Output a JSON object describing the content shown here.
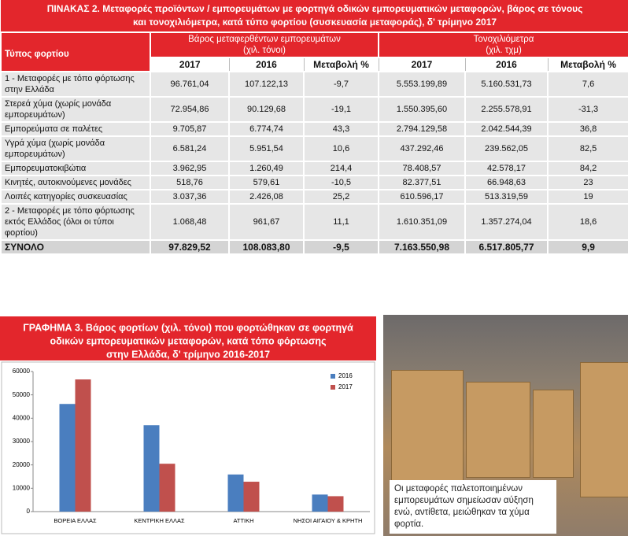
{
  "table": {
    "title_lines": [
      "ΠΙΝΑΚΑΣ 2. Μεταφορές προϊόντων / εμπορευμάτων με φορτηγά οδικών εμπορευματικών μεταφορών, βάρος σε τόνους",
      "και τονοχιλιόμετρα, κατά τύπο φορτίου (συσκευασία μεταφοράς), δ' τρίμηνο 2017"
    ],
    "first_header": "Τύπος φορτίου",
    "groups": [
      [
        "Βάρος μεταφερθέντων εμπορευμάτων",
        "(χιλ. τόνοι)"
      ],
      [
        "Τονοχιλιόμετρα",
        "(χιλ. τχμ)"
      ]
    ],
    "subheaders": [
      "2017",
      "2016",
      "Μεταβολή %",
      "2017",
      "2016",
      "Μεταβολή %"
    ],
    "rows": [
      [
        "1 - Μεταφορές με τόπο φόρτωσης στην Ελλάδα",
        "96.761,04",
        "107.122,13",
        "-9,7",
        "5.553.199,89",
        "5.160.531,73",
        "7,6"
      ],
      [
        "Στερεά χύμα (χωρίς μονάδα εμπορευμάτων)",
        "72.954,86",
        "90.129,68",
        "-19,1",
        "1.550.395,60",
        "2.255.578,91",
        "-31,3"
      ],
      [
        "Εμπορεύματα σε παλέτες",
        "9.705,87",
        "6.774,74",
        "43,3",
        "2.794.129,58",
        "2.042.544,39",
        "36,8"
      ],
      [
        "Υγρά χύμα (χωρίς μονάδα εμπορευμάτων)",
        "6.581,24",
        "5.951,54",
        "10,6",
        "437.292,46",
        "239.562,05",
        "82,5"
      ],
      [
        "Εμπορευματοκιβώτια",
        "3.962,95",
        "1.260,49",
        "214,4",
        "78.408,57",
        "42.578,17",
        "84,2"
      ],
      [
        "Κινητές, αυτοκινούμενες μονάδες",
        "518,76",
        "579,61",
        "-10,5",
        "82.377,51",
        "66.948,63",
        "23"
      ],
      [
        "Λοιπές κατηγορίες συσκευασίας",
        "3.037,36",
        "2.426,08",
        "25,2",
        "610.596,17",
        "513.319,59",
        "19"
      ],
      [
        "2 - Μεταφορές με τόπο φόρτωσης εκτός Ελλάδος (όλοι οι τύποι φορτίου)",
        "1.068,48",
        "961,67",
        "11,1",
        "1.610.351,09",
        "1.357.274,04",
        "18,6"
      ],
      [
        "ΣΥΝΟΛΟ",
        "97.829,52",
        "108.083,80",
        "-9,5",
        "7.163.550,98",
        "6.517.805,77",
        "9,9"
      ]
    ]
  },
  "chart_data": {
    "type": "bar",
    "title_lines": [
      "ΓΡΑΦΗΜΑ 3. Βάρος φορτίων (χιλ. τόνοι) που φορτώθηκαν σε φορτηγά",
      "οδικών εμπορευματικών μεταφορών, κατά τόπο φόρτωσης",
      "στην Ελλάδα, δ' τρίμηνο 2016-2017"
    ],
    "categories": [
      "ΒΟΡΕΙΑ ΕΛΛΑΣ",
      "ΚΕΝΤΡΙΚΗ ΕΛΛΑΣ",
      "ΑΤΤΙΚΗ",
      "ΝΗΣΟΙ ΑΙΓΑΙΟΥ & ΚΡΗΤΗ"
    ],
    "series": [
      {
        "name": "2016",
        "color": "#4a7ebf",
        "values": [
          46100,
          37000,
          15900,
          7300
        ]
      },
      {
        "name": "2017",
        "color": "#c0504d",
        "values": [
          56600,
          20500,
          12800,
          6600
        ]
      }
    ],
    "ylim": [
      0,
      60000
    ],
    "yticks": [
      0,
      10000,
      20000,
      30000,
      40000,
      50000,
      60000
    ],
    "legend": "upper right"
  },
  "photo_caption": "Οι μεταφορές παλετοποιημένων εμπορευμάτων σημείωσαν αύξηση ενώ, αντίθετα, μειώθηκαν τα χύμα φορτία."
}
